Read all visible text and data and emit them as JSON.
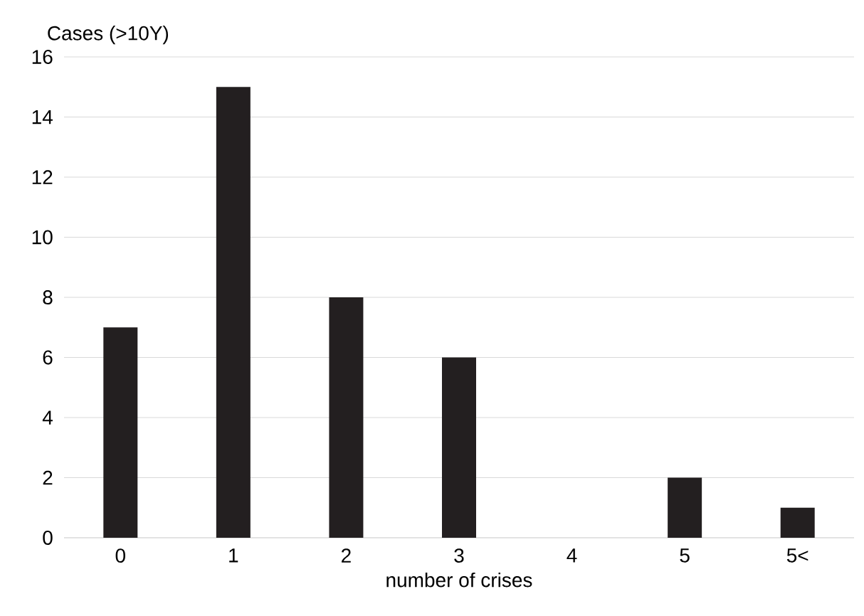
{
  "chart_data": {
    "type": "bar",
    "ylabel": "Cases (>10Y)",
    "xlabel": "number of crises",
    "categories": [
      "0",
      "1",
      "2",
      "3",
      "4",
      "5",
      "5<"
    ],
    "values": [
      7,
      15,
      8,
      6,
      0,
      2,
      1
    ],
    "color": "#231f20",
    "ylim": [
      0,
      16
    ],
    "yticks": [
      0,
      2,
      4,
      6,
      8,
      10,
      12,
      14,
      16
    ],
    "grid": "y"
  }
}
